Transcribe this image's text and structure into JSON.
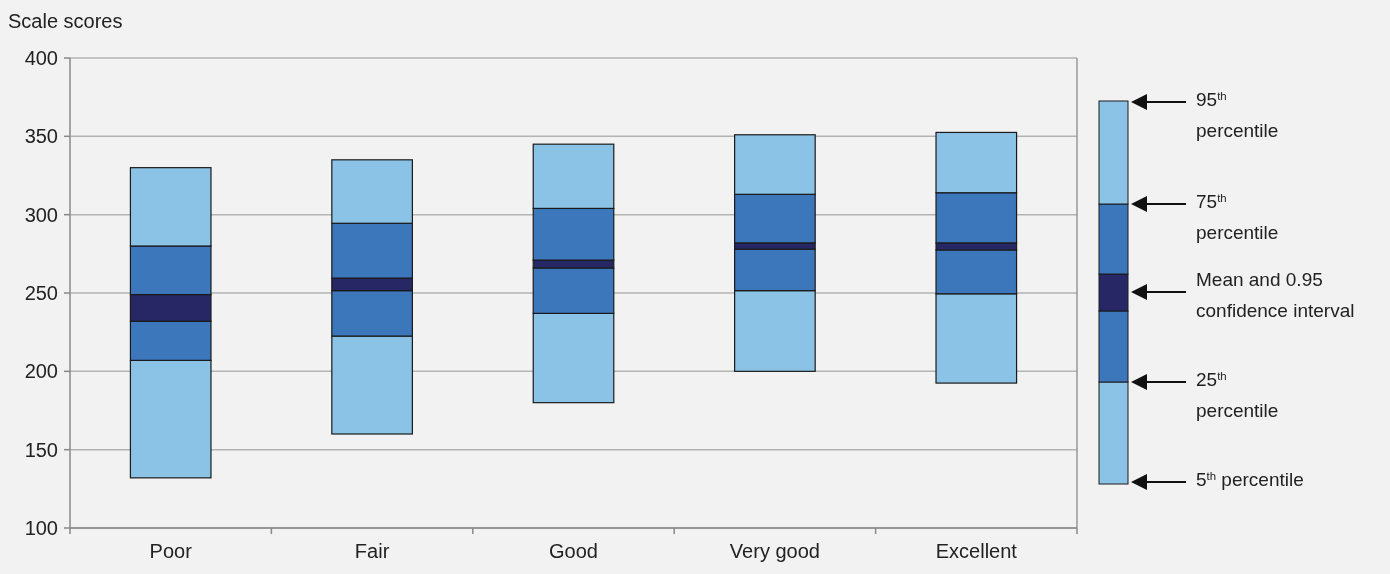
{
  "chart_data": {
    "type": "bar",
    "ylabel": "Scale scores",
    "categories": [
      "Poor",
      "Fair",
      "Good",
      "Very good",
      "Excellent"
    ],
    "series": [
      {
        "color": "#8bc3e6",
        "base": [
          132,
          160,
          180,
          200,
          192.5
        ],
        "values": [
          75,
          62.5,
          57,
          51.5,
          57
        ]
      },
      {
        "color": "#3d77bb",
        "base": [
          207,
          222.5,
          237,
          251.5,
          249.5
        ],
        "values": [
          25,
          29,
          29,
          26.5,
          28
        ]
      },
      {
        "color": "#272766",
        "base": [
          232,
          251.5,
          266,
          278,
          277.5
        ],
        "values": [
          17,
          8,
          5,
          4,
          4.5
        ]
      },
      {
        "color": "#3d77bb",
        "base": [
          249,
          259.5,
          271,
          282,
          282
        ],
        "values": [
          31,
          35,
          33,
          31,
          32
        ]
      },
      {
        "color": "#8bc3e6",
        "base": [
          280,
          294.5,
          304,
          313,
          314
        ],
        "values": [
          50,
          40.5,
          41,
          38,
          38.5
        ]
      }
    ],
    "ylim": [
      100,
      400
    ],
    "yticks": [
      100,
      150,
      200,
      250,
      300,
      350,
      400
    ],
    "grid": "y",
    "annotations": [
      "95$^{th}$ percentile",
      "75$^{th}$ percentile",
      "Mean and 0.95 confidence interval",
      "25$^{th}$ percentile",
      "5$^{th}$ percentile"
    ]
  }
}
